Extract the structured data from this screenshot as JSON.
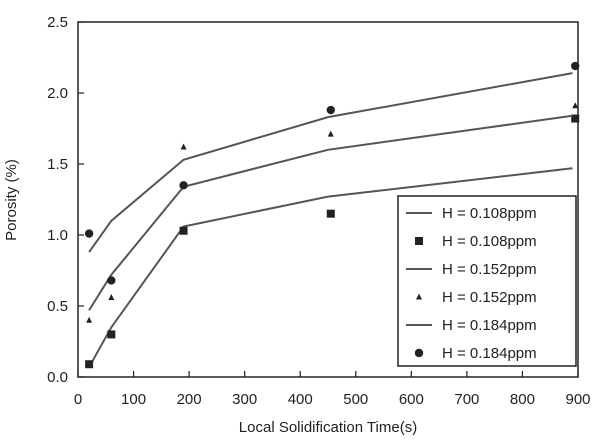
{
  "chart_data": {
    "type": "scatter",
    "xlabel": "Local Solidification Time(s)",
    "ylabel": "Porosity (%)",
    "xlim": [
      0,
      900
    ],
    "ylim": [
      0,
      2.5
    ],
    "xticks": [
      "0",
      "100",
      "200",
      "300",
      "400",
      "500",
      "600",
      "700",
      "800",
      "900"
    ],
    "yticks": [
      "0.0",
      "0.5",
      "1.0",
      "1.5",
      "2.0",
      "2.5"
    ],
    "grid": false,
    "legend_position": "bottom-right",
    "series": [
      {
        "name": "H = 0.108ppm",
        "kind": "line",
        "x": [
          20,
          60,
          190,
          450,
          890
        ],
        "y": [
          0.07,
          0.35,
          1.06,
          1.27,
          1.47
        ]
      },
      {
        "name": "H = 0.108ppm",
        "kind": "marker",
        "marker": "square",
        "x": [
          20,
          60,
          190,
          455,
          895
        ],
        "y": [
          0.09,
          0.3,
          1.03,
          1.15,
          1.82
        ]
      },
      {
        "name": "H = 0.152ppm",
        "kind": "line",
        "x": [
          20,
          60,
          190,
          450,
          890
        ],
        "y": [
          0.47,
          0.72,
          1.34,
          1.6,
          1.84
        ]
      },
      {
        "name": "H = 0.152ppm",
        "kind": "marker",
        "marker": "triangle",
        "x": [
          20,
          60,
          190,
          455,
          895
        ],
        "y": [
          0.4,
          0.56,
          1.62,
          1.71,
          1.91
        ]
      },
      {
        "name": "H = 0.184ppm",
        "kind": "line",
        "x": [
          20,
          60,
          190,
          450,
          890
        ],
        "y": [
          0.88,
          1.1,
          1.53,
          1.83,
          2.14
        ]
      },
      {
        "name": "H = 0.184ppm",
        "kind": "marker",
        "marker": "circle",
        "x": [
          20,
          60,
          190,
          455,
          895
        ],
        "y": [
          1.01,
          0.68,
          1.35,
          1.88,
          2.19
        ]
      }
    ]
  }
}
